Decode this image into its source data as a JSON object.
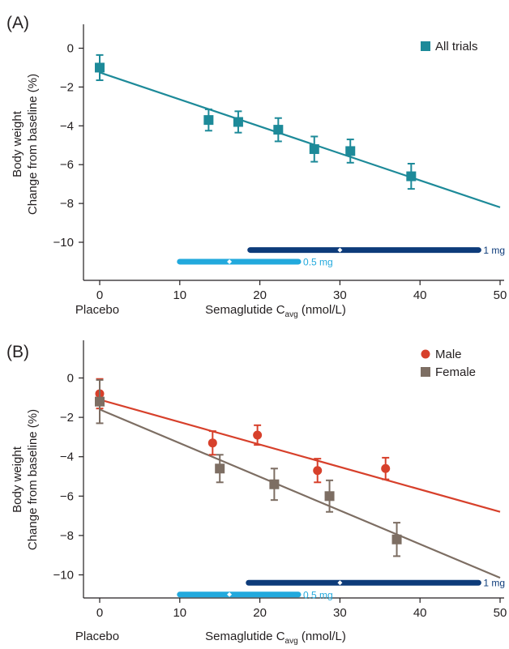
{
  "chart_data": [
    {
      "type": "scatter",
      "panel_label": "(A)",
      "xlabel_main": "Semaglutide C",
      "xlabel_sub": "avg",
      "xlabel_unit": " (nmol/L)",
      "placebo_label": "Placebo",
      "ylabel_line1": "Body weight",
      "ylabel_line2": "Change from baseline (%)",
      "xlim": [
        0,
        50
      ],
      "ylim": [
        -11.5,
        0.8
      ],
      "xticks": [
        0,
        10,
        20,
        30,
        40,
        50
      ],
      "yticks": [
        0,
        -2,
        -4,
        -6,
        -8,
        -10
      ],
      "ytick_labels": [
        "0",
        "−2",
        "−4",
        "−6",
        "−8",
        "−10"
      ],
      "legend_position": "top-right",
      "series": [
        {
          "name": "All trials",
          "marker": "square",
          "color": "#1d8a99",
          "x": [
            0,
            13.6,
            17.3,
            22.3,
            26.8,
            31.3,
            38.9
          ],
          "y": [
            -1.0,
            -3.7,
            -3.8,
            -4.2,
            -5.2,
            -5.3,
            -6.6
          ],
          "err": [
            0.65,
            0.55,
            0.55,
            0.6,
            0.65,
            0.6,
            0.65
          ],
          "fit": {
            "x": [
              0,
              50
            ],
            "y": [
              -1.25,
              -8.2
            ]
          }
        }
      ],
      "dose_bars": [
        {
          "label": "1 mg",
          "x_start": 18.8,
          "x_end": 47.3,
          "median": 30.0,
          "y": -10.4,
          "color": "#0d3b7a"
        },
        {
          "label": "0.5 mg",
          "x_start": 10.0,
          "x_end": 24.8,
          "median": 16.2,
          "y": -11.0,
          "color": "#22a9dd"
        }
      ]
    },
    {
      "type": "scatter",
      "panel_label": "(B)",
      "xlabel_main": "Semaglutide C",
      "xlabel_sub": "avg",
      "xlabel_unit": " (nmol/L)",
      "placebo_label": "Placebo",
      "ylabel_line1": "Body weight",
      "ylabel_line2": "Change from baseline (%)",
      "xlim": [
        0,
        50
      ],
      "ylim": [
        -11.5,
        0.8
      ],
      "xticks": [
        0,
        10,
        20,
        30,
        40,
        50
      ],
      "yticks": [
        0,
        -2,
        -4,
        -6,
        -8,
        -10
      ],
      "ytick_labels": [
        "0",
        "−2",
        "−4",
        "−6",
        "−8",
        "−10"
      ],
      "legend_position": "top-right",
      "series": [
        {
          "name": "Male",
          "marker": "circle",
          "color": "#d7402b",
          "x": [
            0,
            14.1,
            19.7,
            27.2,
            35.7
          ],
          "y": [
            -0.8,
            -3.3,
            -2.9,
            -4.7,
            -4.6
          ],
          "err": [
            0.75,
            0.6,
            0.5,
            0.6,
            0.55
          ],
          "fit": {
            "x": [
              0,
              50
            ],
            "y": [
              -1.1,
              -6.8
            ]
          }
        },
        {
          "name": "Female",
          "marker": "square",
          "color": "#7d6e63",
          "x": [
            0,
            15.0,
            21.8,
            28.7,
            37.1
          ],
          "y": [
            -1.2,
            -4.6,
            -5.4,
            -6.0,
            -8.2
          ],
          "err": [
            1.1,
            0.7,
            0.8,
            0.8,
            0.85
          ],
          "fit": {
            "x": [
              0,
              50
            ],
            "y": [
              -1.6,
              -10.15
            ]
          }
        }
      ],
      "dose_bars": [
        {
          "label": "1 mg",
          "x_start": 18.6,
          "x_end": 47.3,
          "median": 30.0,
          "y": -10.4,
          "color": "#0d3b7a"
        },
        {
          "label": "0.5 mg",
          "x_start": 10.0,
          "x_end": 24.8,
          "median": 16.2,
          "y": -11.0,
          "color": "#22a9dd"
        }
      ]
    }
  ]
}
